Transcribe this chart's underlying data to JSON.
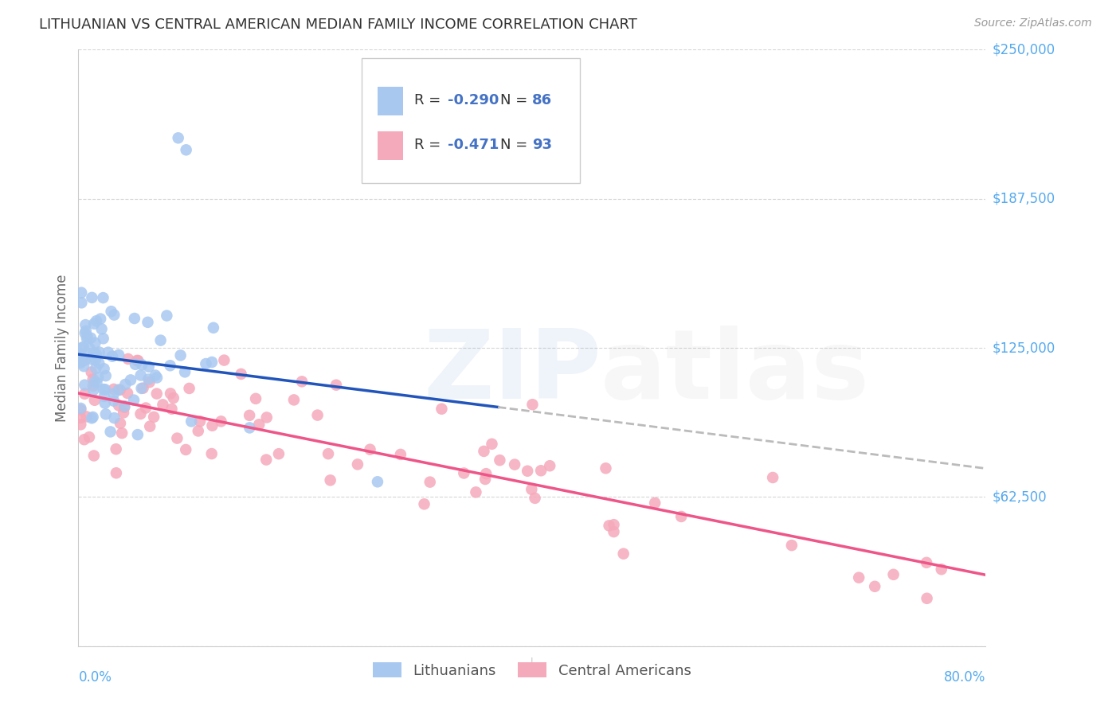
{
  "title": "LITHUANIAN VS CENTRAL AMERICAN MEDIAN FAMILY INCOME CORRELATION CHART",
  "source": "Source: ZipAtlas.com",
  "ylabel": "Median Family Income",
  "y_ticks": [
    0,
    62500,
    125000,
    187500,
    250000
  ],
  "y_tick_labels_right": [
    "",
    "$62,500",
    "$125,000",
    "$187,500",
    "$250,000"
  ],
  "x_min": 0.0,
  "x_max": 0.8,
  "y_min": 0,
  "y_max": 250000,
  "legend_R1": "-0.290",
  "legend_N1": "86",
  "legend_R2": "-0.471",
  "legend_N2": "93",
  "color_blue_scatter": "#A8C8F0",
  "color_pink_scatter": "#F5AABB",
  "color_blue_line": "#2255BB",
  "color_pink_line": "#EE5588",
  "color_dashed": "#BBBBBB",
  "background": "#FFFFFF",
  "grid_color": "#CCCCCC",
  "title_color": "#333333",
  "right_label_color": "#55AAEE",
  "x_label_color": "#55AAEE",
  "legend_text_color": "#333333",
  "legend_val_color": "#4472C4",
  "watermark_zip_color": "#5588CC",
  "watermark_atlas_color": "#AAAAAA"
}
